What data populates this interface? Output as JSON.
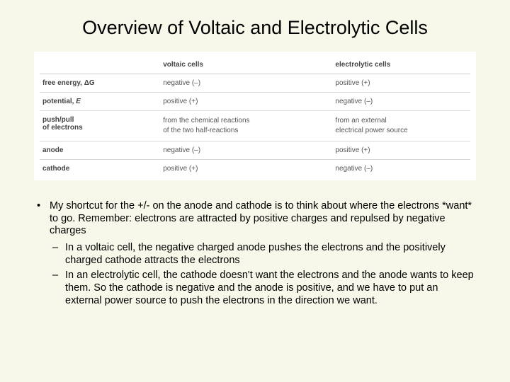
{
  "title": "Overview of Voltaic and Electrolytic Cells",
  "table": {
    "headers": [
      "",
      "voltaic cells",
      "electrolytic cells"
    ],
    "rows": [
      {
        "label_html": "free energy, Δ<b>G</b>",
        "c1": "negative (–)",
        "c2": "positive (+)"
      },
      {
        "label_html": "potential, <span class=\"ital\">E</span>",
        "c1": "positive (+)",
        "c2": "negative (–)"
      },
      {
        "label_html": "push/pull<br>of electrons",
        "c1_lines": [
          "from the chemical reactions",
          "of the two half-reactions"
        ],
        "c2_lines": [
          "from an external",
          "electrical power source"
        ]
      },
      {
        "label_html": "anode",
        "c1": "negative (–)",
        "c2": "positive (+)"
      },
      {
        "label_html": "cathode",
        "c1": "positive (+)",
        "c2": "negative (–)"
      }
    ]
  },
  "bullets": {
    "main": "My shortcut for the +/- on the anode and cathode is to think about where the electrons *want* to go. Remember: electrons are attracted by positive charges and repulsed by negative charges",
    "sub": [
      "In a voltaic cell, the negative charged anode pushes the electrons and the positively charged cathode attracts the electrons",
      "In an electrolytic cell, the cathode doesn't want the electrons and the anode wants to keep them. So the cathode is negative and the anode is positive, and we have to put an external power source to push the electrons in the direction we want."
    ]
  }
}
